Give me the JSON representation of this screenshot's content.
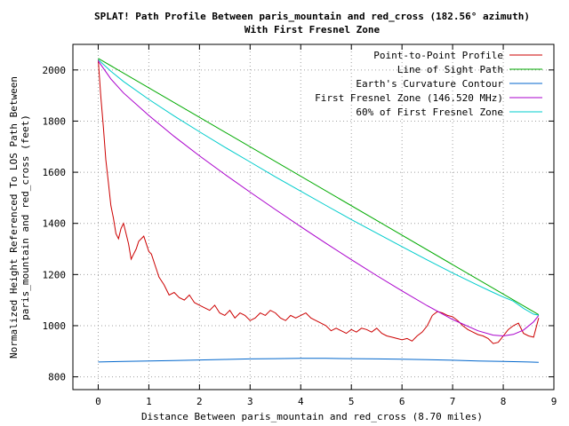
{
  "chart_data": {
    "type": "line",
    "title": "SPLAT! Path Profile Between paris_mountain and red_cross (182.56° azimuth)",
    "subtitle": "With First Fresnel Zone",
    "xlabel": "Distance Between paris_mountain and red_cross (8.70 miles)",
    "ylabel_line1": "Normalized Height Referenced To LOS Path Between",
    "ylabel_line2": "paris_mountain and red_cross (feet)",
    "xlim": [
      -0.5,
      9
    ],
    "ylim": [
      750,
      2100
    ],
    "x_ticks": [
      0,
      1,
      2,
      3,
      4,
      5,
      6,
      7,
      8,
      9
    ],
    "x_tick_labels": [
      "0",
      "1",
      "2",
      "3",
      "4",
      "5",
      "6",
      "7",
      "8",
      "9"
    ],
    "y_ticks": [
      800,
      1000,
      1200,
      1400,
      1600,
      1800,
      2000
    ],
    "y_tick_labels": [
      "800",
      "1000",
      "1200",
      "1400",
      "1600",
      "1800",
      "2000"
    ],
    "grid": true,
    "legend_position": "top-right",
    "series": [
      {
        "name": "Point-to-Point Profile",
        "color": "#cc0000",
        "x": [
          0,
          0.05,
          0.1,
          0.15,
          0.2,
          0.25,
          0.3,
          0.35,
          0.4,
          0.45,
          0.5,
          0.55,
          0.6,
          0.65,
          0.7,
          0.75,
          0.8,
          0.85,
          0.9,
          0.95,
          1.0,
          1.05,
          1.1,
          1.15,
          1.2,
          1.3,
          1.4,
          1.5,
          1.6,
          1.7,
          1.8,
          1.9,
          2.0,
          2.1,
          2.2,
          2.3,
          2.4,
          2.5,
          2.6,
          2.7,
          2.8,
          2.9,
          3.0,
          3.1,
          3.2,
          3.3,
          3.4,
          3.5,
          3.6,
          3.7,
          3.8,
          3.9,
          4.0,
          4.1,
          4.2,
          4.3,
          4.4,
          4.5,
          4.6,
          4.7,
          4.8,
          4.9,
          5.0,
          5.1,
          5.2,
          5.3,
          5.4,
          5.5,
          5.6,
          5.7,
          5.8,
          5.9,
          6.0,
          6.1,
          6.2,
          6.3,
          6.4,
          6.5,
          6.6,
          6.7,
          6.8,
          6.9,
          7.0,
          7.1,
          7.2,
          7.3,
          7.4,
          7.5,
          7.6,
          7.7,
          7.8,
          7.9,
          8.0,
          8.1,
          8.2,
          8.3,
          8.4,
          8.5,
          8.6,
          8.7
        ],
        "y": [
          2040,
          1900,
          1780,
          1650,
          1560,
          1470,
          1420,
          1360,
          1340,
          1380,
          1400,
          1360,
          1320,
          1260,
          1280,
          1300,
          1330,
          1340,
          1350,
          1320,
          1290,
          1280,
          1250,
          1220,
          1190,
          1160,
          1120,
          1130,
          1110,
          1100,
          1120,
          1090,
          1080,
          1070,
          1060,
          1080,
          1050,
          1040,
          1060,
          1030,
          1050,
          1040,
          1020,
          1030,
          1050,
          1040,
          1060,
          1050,
          1030,
          1020,
          1040,
          1030,
          1040,
          1050,
          1030,
          1020,
          1010,
          1000,
          980,
          990,
          980,
          970,
          985,
          975,
          990,
          985,
          975,
          990,
          970,
          960,
          955,
          950,
          945,
          950,
          940,
          960,
          975,
          1000,
          1040,
          1055,
          1050,
          1040,
          1035,
          1020,
          1000,
          985,
          975,
          965,
          960,
          950,
          930,
          935,
          960,
          985,
          1000,
          1010,
          970,
          960,
          955,
          1030
        ]
      },
      {
        "name": "Line of Sight Path",
        "color": "#00aa00",
        "x": [
          0,
          8.7
        ],
        "y": [
          2045,
          1043
        ]
      },
      {
        "name": "Earth's Curvature Contour",
        "color": "#0066cc",
        "x": [
          0,
          0.5,
          1,
          1.5,
          2,
          2.5,
          3,
          3.5,
          4,
          4.5,
          5,
          5.5,
          6,
          6.5,
          7,
          7.5,
          8,
          8.5,
          8.7
        ],
        "y": [
          858,
          860,
          862,
          864,
          866,
          868,
          870,
          871,
          872,
          872,
          871,
          870,
          869,
          867,
          865,
          862,
          860,
          858,
          857
        ]
      },
      {
        "name": "First Fresnel Zone (146.520 MHz)",
        "color": "#aa00cc",
        "x": [
          0,
          0.25,
          0.5,
          1,
          1.5,
          2,
          2.5,
          3,
          3.5,
          4,
          4.5,
          5,
          5.5,
          6,
          6.5,
          7,
          7.5,
          7.8,
          8.0,
          8.2,
          8.4,
          8.6,
          8.7
        ],
        "y": [
          2035,
          1965,
          1910,
          1822,
          1740,
          1664,
          1592,
          1522,
          1454,
          1387,
          1322,
          1258,
          1196,
          1136,
          1078,
          1024,
          980,
          963,
          960,
          966,
          983,
          1015,
          1040
        ]
      },
      {
        "name": "60% of First Fresnel Zone",
        "color": "#00cccc",
        "x": [
          0,
          0.25,
          0.5,
          1,
          1.5,
          2,
          2.5,
          3,
          3.5,
          4,
          4.5,
          5,
          5.5,
          6,
          6.5,
          7,
          7.5,
          7.8,
          8.0,
          8.2,
          8.4,
          8.6,
          8.7
        ],
        "y": [
          2040,
          1995,
          1955,
          1885,
          1820,
          1758,
          1698,
          1640,
          1582,
          1526,
          1470,
          1415,
          1362,
          1309,
          1257,
          1206,
          1158,
          1130,
          1112,
          1096,
          1068,
          1045,
          1041
        ]
      }
    ]
  }
}
